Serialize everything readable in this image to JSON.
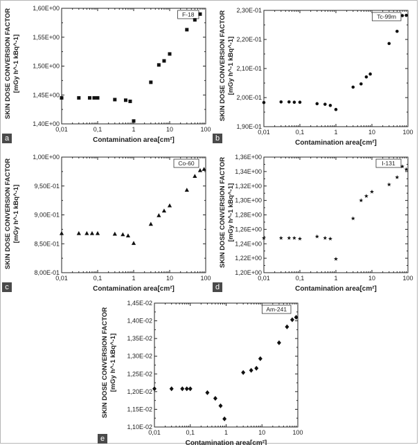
{
  "figure": {
    "panels": [
      {
        "panel_label": "a"
      },
      {
        "panel_label": "b"
      },
      {
        "panel_label": "c"
      },
      {
        "panel_label": "d"
      },
      {
        "panel_label": "e"
      }
    ]
  },
  "chart_data": [
    {
      "type": "scatter",
      "legend": "F-18",
      "legend_position": "top-right",
      "marker": "square",
      "xlabel": "Contamination area[cm²]",
      "ylabel_line1": "SKIN DOSE CONVERSION FACTOR",
      "ylabel_line2": "[mGy h^-1 kBq^-1]",
      "xscale": "log",
      "xlim": [
        0.01,
        100
      ],
      "ylim": [
        1.4,
        1.6
      ],
      "xticks": [
        0.01,
        0.1,
        1,
        10,
        100
      ],
      "xtick_labels": [
        "0,01",
        "0,1",
        "1",
        "10",
        "100"
      ],
      "yticks": [
        1.4,
        1.45,
        1.5,
        1.55,
        1.6
      ],
      "ytick_labels": [
        "1,40E+00",
        "1,45E+00",
        "1,50E+00",
        "1,55E+00",
        "1,60E+00"
      ],
      "x": [
        0.01,
        0.03,
        0.06,
        0.08,
        0.1,
        0.3,
        0.6,
        0.8,
        1.0,
        3.0,
        5.0,
        7.0,
        10.0,
        30.0,
        50.0,
        70.0
      ],
      "y": [
        1.445,
        1.445,
        1.445,
        1.445,
        1.445,
        1.442,
        1.441,
        1.439,
        1.405,
        1.472,
        1.502,
        1.509,
        1.521,
        1.563,
        1.58,
        1.59
      ]
    },
    {
      "type": "scatter",
      "legend": "Tc-99m",
      "legend_position": "top-right",
      "marker": "circle",
      "xlabel": "Contamination area[cm²]",
      "ylabel_line1": "SKIN DOSE CONVERSION FACTOR",
      "ylabel_line2": "[mGy h^-1 kBq^-1]",
      "xscale": "log",
      "xlim": [
        0.01,
        100
      ],
      "ylim": [
        0.19,
        0.23
      ],
      "xticks": [
        0.01,
        0.1,
        1,
        10,
        100
      ],
      "xtick_labels": [
        "0,01",
        "0,1",
        "1",
        "10",
        "100"
      ],
      "yticks": [
        0.19,
        0.2,
        0.21,
        0.22,
        0.23
      ],
      "ytick_labels": [
        "1,90E-01",
        "2,00E-01",
        "2,10E-01",
        "2,20E-01",
        "2,30E-01"
      ],
      "x": [
        0.01,
        0.03,
        0.05,
        0.07,
        0.1,
        0.3,
        0.5,
        0.7,
        1.0,
        3.0,
        5.0,
        7.0,
        9.0,
        30.0,
        50.0,
        70.0,
        90.0
      ],
      "y": [
        0.1983,
        0.1985,
        0.1985,
        0.1984,
        0.1984,
        0.1979,
        0.1977,
        0.1973,
        0.1959,
        0.2036,
        0.2047,
        0.2071,
        0.2081,
        0.2186,
        0.2228,
        0.2282,
        0.2283
      ]
    },
    {
      "type": "scatter",
      "legend": "Co-60",
      "legend_position": "top-right",
      "marker": "triangle",
      "xlabel": "Contamination area[cm²]",
      "ylabel_line1": "SKIN DOSE CONVERSION FACTOR",
      "ylabel_line2": "[mGy h^-1 kBq^-1]",
      "xscale": "log",
      "xlim": [
        0.01,
        100
      ],
      "ylim": [
        0.8,
        1.0
      ],
      "xticks": [
        0.01,
        0.1,
        1,
        10,
        100
      ],
      "xtick_labels": [
        "0,01",
        "0,1",
        "1",
        "10",
        "100"
      ],
      "yticks": [
        0.8,
        0.85,
        0.9,
        0.95,
        1.0
      ],
      "ytick_labels": [
        "8,00E-01",
        "8,50E-01",
        "9,00E-01",
        "9,50E-01",
        "1,00E+00"
      ],
      "x": [
        0.01,
        0.03,
        0.05,
        0.07,
        0.1,
        0.3,
        0.5,
        0.7,
        1.0,
        3.0,
        5.0,
        7.0,
        10.0,
        30.0,
        50.0,
        70.0,
        90.0
      ],
      "y": [
        0.868,
        0.868,
        0.868,
        0.868,
        0.868,
        0.867,
        0.866,
        0.864,
        0.851,
        0.884,
        0.899,
        0.907,
        0.916,
        0.943,
        0.967,
        0.977,
        0.979
      ]
    },
    {
      "type": "scatter",
      "legend": "I-131",
      "legend_position": "top-right",
      "marker": "star",
      "xlabel": "Contamination area[cm²]",
      "ylabel_line1": "SKIN DOSE CONVERSION FACTOR",
      "ylabel_line2": "[mGy h^-1 kBq^-1]",
      "xscale": "log",
      "xlim": [
        0.01,
        100
      ],
      "ylim": [
        1.2,
        1.36
      ],
      "xticks": [
        0.01,
        0.1,
        1,
        10,
        100
      ],
      "xtick_labels": [
        "0,01",
        "0,1",
        "1",
        "10",
        "100"
      ],
      "yticks": [
        1.2,
        1.22,
        1.24,
        1.26,
        1.28,
        1.3,
        1.32,
        1.34,
        1.36
      ],
      "ytick_labels": [
        "1,20E+00",
        "1,22E+00",
        "1,24E+00",
        "1,26E+00",
        "1,28E+00",
        "1,30E+00",
        "1,32E+00",
        "1,34E+00",
        "1,36E+00"
      ],
      "x": [
        0.01,
        0.03,
        0.05,
        0.07,
        0.1,
        0.3,
        0.5,
        0.7,
        1.0,
        3.0,
        5.0,
        7.0,
        10.0,
        30.0,
        50.0,
        70.0,
        90.0
      ],
      "y": [
        1.248,
        1.248,
        1.248,
        1.248,
        1.247,
        1.25,
        1.248,
        1.247,
        1.219,
        1.275,
        1.3,
        1.306,
        1.312,
        1.322,
        1.332,
        1.347,
        1.343
      ]
    },
    {
      "type": "scatter",
      "legend": "Am-241",
      "legend_position": "top-right",
      "marker": "diamond",
      "xlabel": "Contamination area[cm²]",
      "ylabel_line1": "SKIN DOSE CONVERSION FACTOR",
      "ylabel_line2": "[mGy h^-1 kBq^-1]",
      "xscale": "log",
      "xlim": [
        0.01,
        100
      ],
      "ylim": [
        0.011,
        0.0145
      ],
      "xticks": [
        0.01,
        0.1,
        1,
        10,
        100
      ],
      "xtick_labels": [
        "0,01",
        "0,1",
        "1",
        "10",
        "100"
      ],
      "yticks": [
        0.011,
        0.0115,
        0.012,
        0.0125,
        0.013,
        0.0135,
        0.014,
        0.0145
      ],
      "ytick_labels": [
        "1,10E-02",
        "1,15E-02",
        "1,20E-02",
        "1,25E-02",
        "1,30E-02",
        "1,35E-02",
        "1,40E-02",
        "1,45E-02"
      ],
      "x": [
        0.01,
        0.03,
        0.06,
        0.08,
        0.1,
        0.3,
        0.5,
        0.7,
        0.9,
        3.0,
        5.0,
        7.0,
        9.0,
        30.0,
        50.0,
        70.0,
        90.0
      ],
      "y": [
        0.01208,
        0.01208,
        0.01208,
        0.01208,
        0.01208,
        0.01197,
        0.01181,
        0.0116,
        0.01123,
        0.01254,
        0.0126,
        0.01266,
        0.01293,
        0.01338,
        0.01383,
        0.01403,
        0.0141
      ]
    }
  ]
}
